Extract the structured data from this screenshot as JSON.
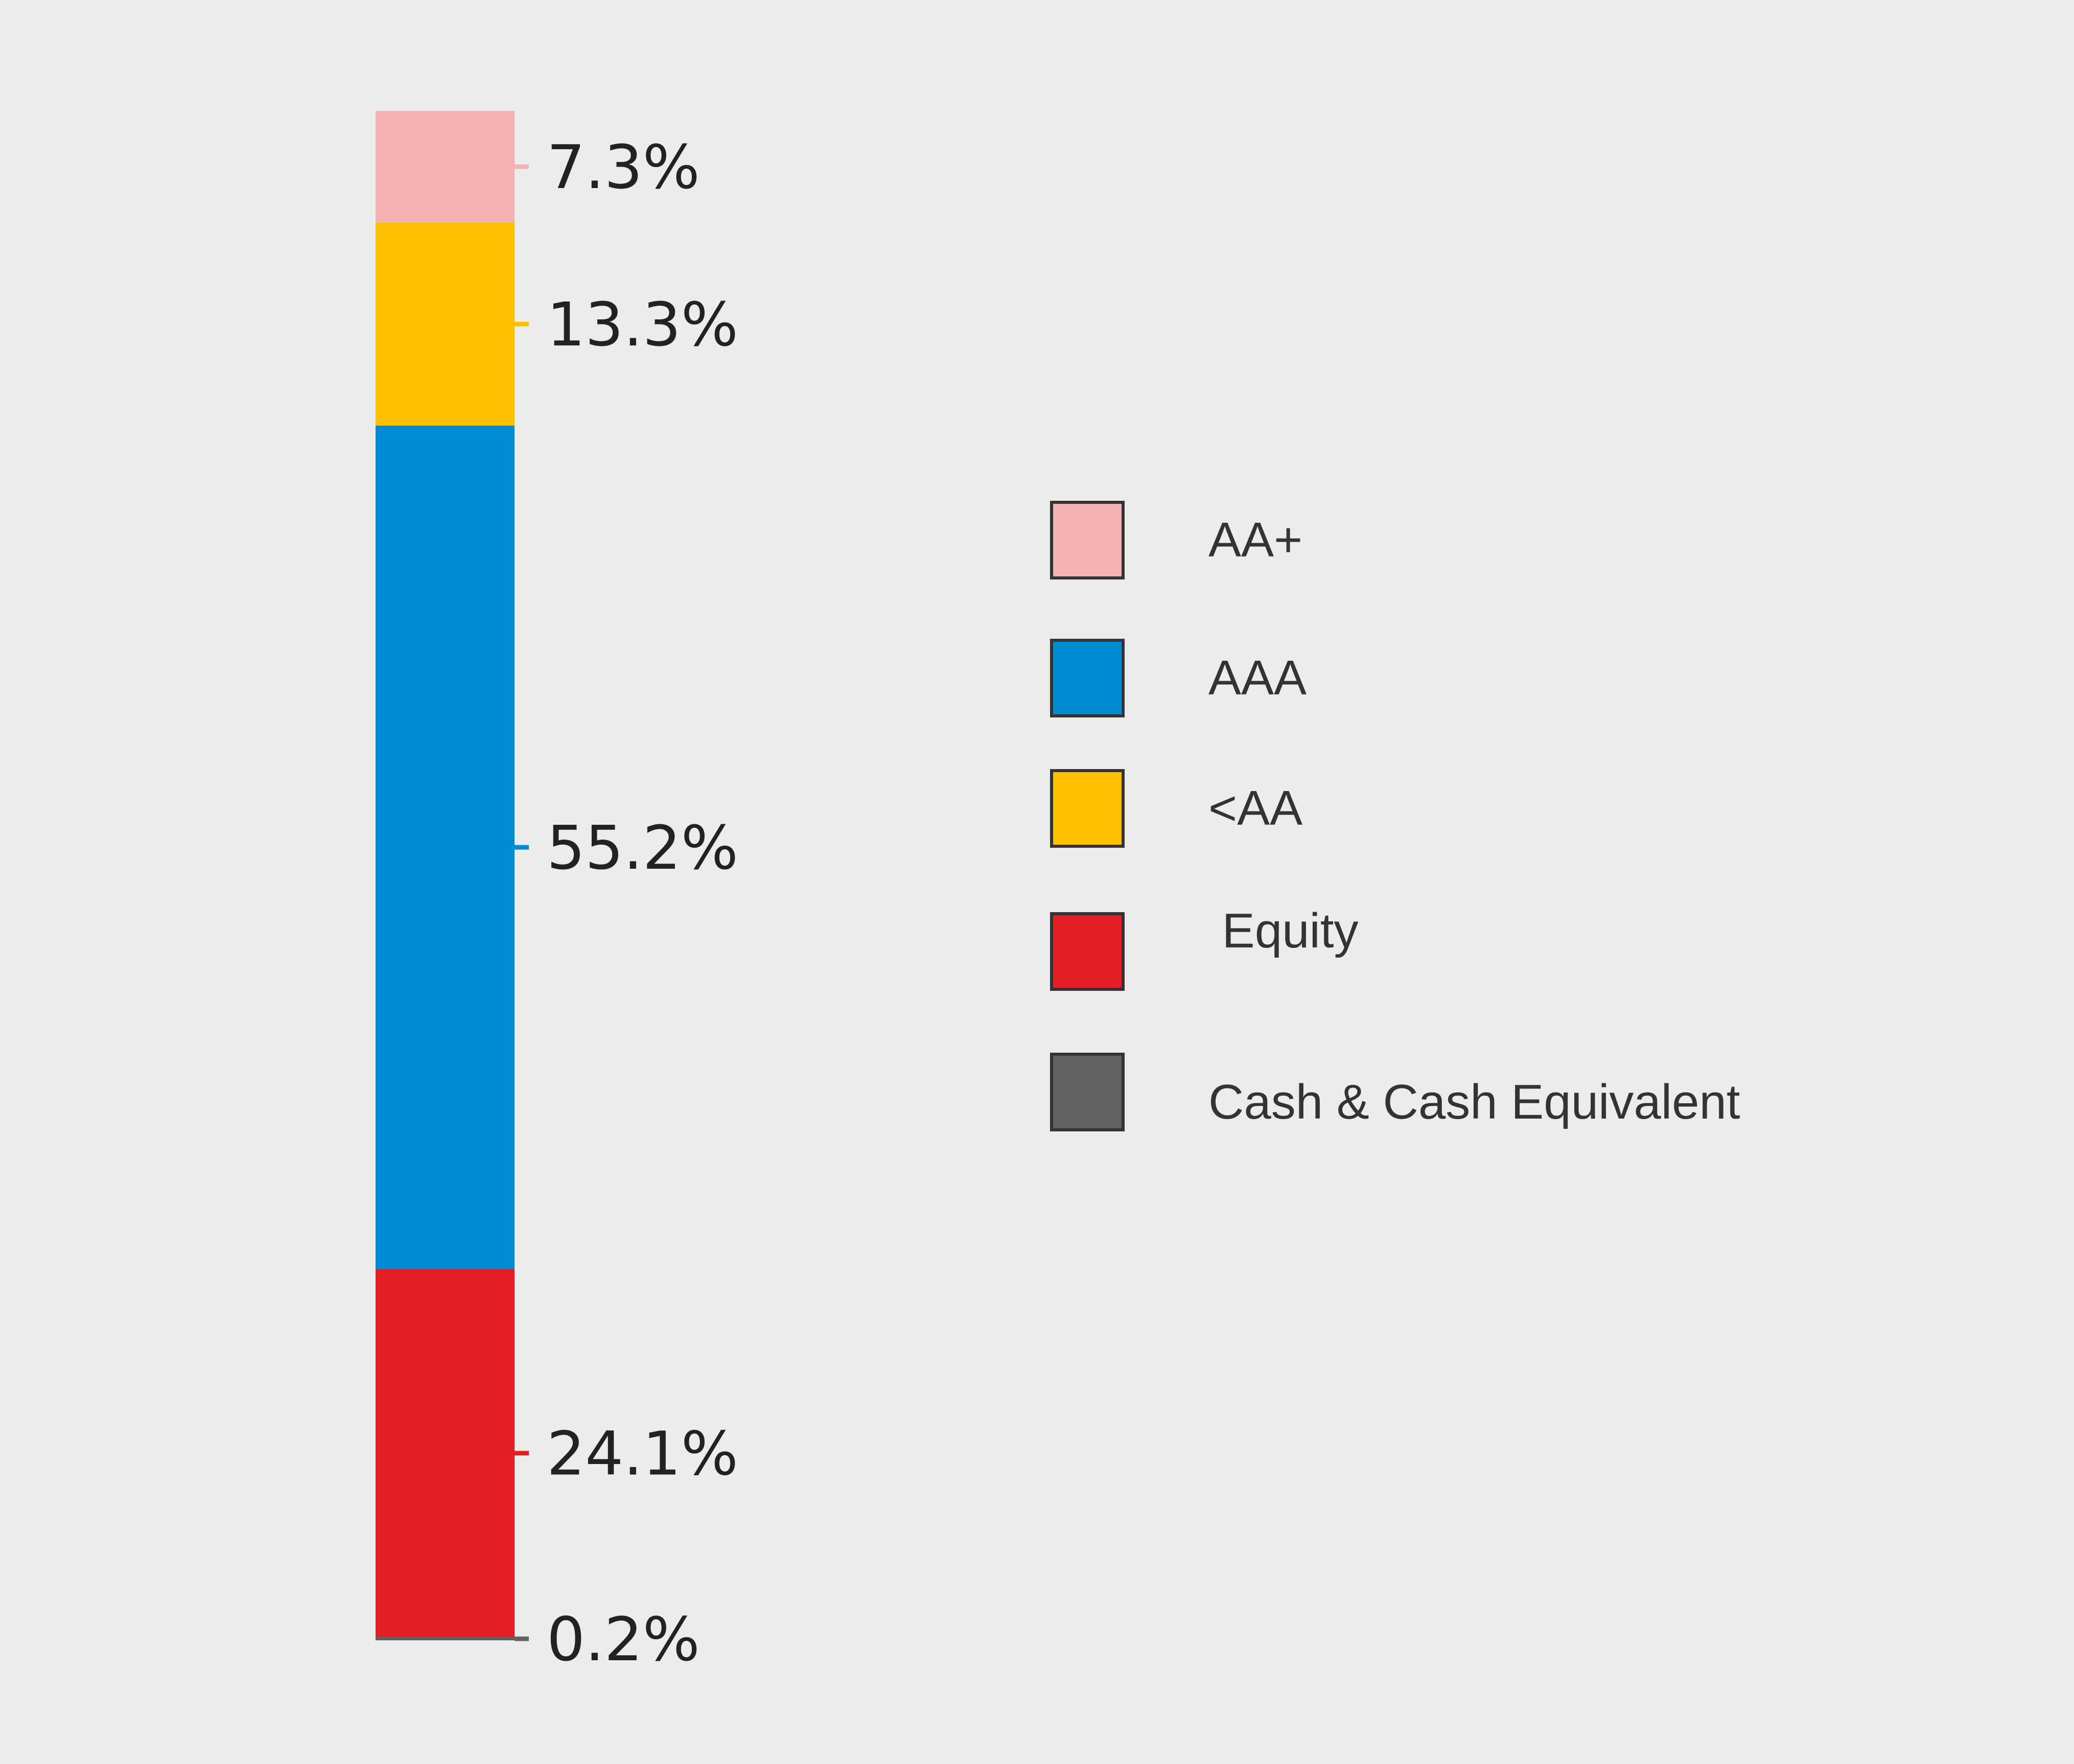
{
  "chart_data": {
    "type": "bar",
    "stacked": true,
    "orientation": "vertical",
    "ylim": [
      0,
      100.1
    ],
    "grid": false,
    "legend_position": "right",
    "series": [
      {
        "name": "AA+",
        "value": 7.3,
        "label": "7.3%",
        "color": "#f4b2b5"
      },
      {
        "name": "<AA",
        "value": 13.3,
        "label": "13.3%",
        "color": "#ffc000"
      },
      {
        "name": "AAA",
        "value": 55.2,
        "label": "55.2%",
        "color": "#008cd5"
      },
      {
        "name": "Equity",
        "value": 24.1,
        "label": "24.1%",
        "color": "#e31e24"
      },
      {
        "name": "Cash & Cash Equivalent",
        "value": 0.2,
        "label": "0.2%",
        "color": "#626262"
      }
    ],
    "legend": [
      {
        "label": "AA+",
        "color": "#f4b2b5"
      },
      {
        "label": "AAA",
        "color": "#008cd5"
      },
      {
        "label": "<AA",
        "color": "#ffc000"
      },
      {
        "label": " Equity",
        "color": "#e31e24"
      },
      {
        "label": "Cash & Cash Equivalent",
        "color": "#626262"
      }
    ]
  }
}
